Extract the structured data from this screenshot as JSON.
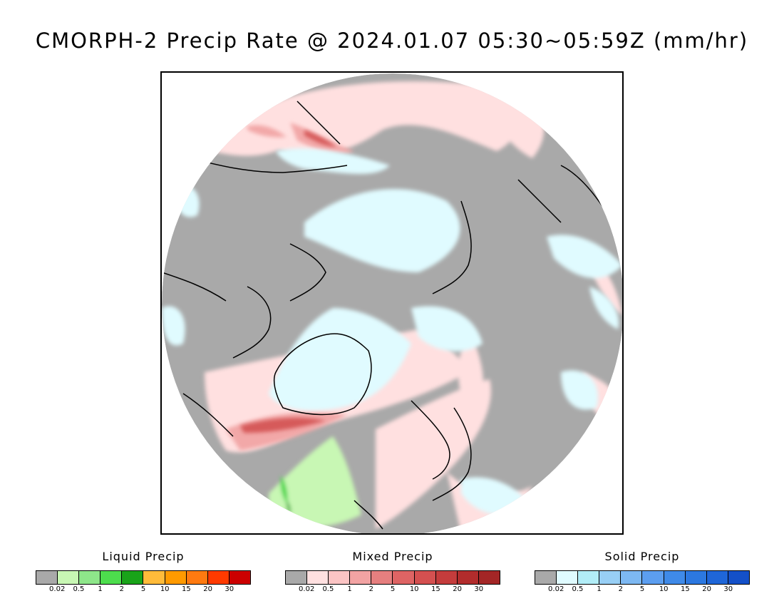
{
  "title": "CMORPH-2 Precip Rate @ 2024.01.07 05:30~05:59Z (mm/hr)",
  "map": {
    "projection": "north-polar-stereographic",
    "colors": {
      "no_precip": "#a9a9a9",
      "light_solid": "#e0fbff",
      "light_mixed": "#ffe0e0",
      "mid_mixed": "#f2a8a8",
      "strong_mixed": "#d65a5a",
      "light_liquid": "#c8f7b4",
      "mid_liquid": "#47d647",
      "strong_liquid": "#1aa31a",
      "coastline": "#000000"
    }
  },
  "legends": [
    {
      "title": "Liquid Precip",
      "colors": [
        "#a9a9a9",
        "#c8f7b4",
        "#8ee68a",
        "#4ddd4d",
        "#19a319",
        "#ffbb3a",
        "#ff9a00",
        "#ff7a10",
        "#ff3a00",
        "#cc0000"
      ],
      "ticks": [
        "0.02",
        "0.5",
        "1",
        "2",
        "5",
        "10",
        "15",
        "20",
        "30"
      ]
    },
    {
      "title": "Mixed Precip",
      "colors": [
        "#a9a9a9",
        "#ffe0e0",
        "#fbc4c4",
        "#f2a3a3",
        "#e67f7f",
        "#de6464",
        "#d45050",
        "#c43c3c",
        "#b22c2c",
        "#a32626"
      ],
      "ticks": [
        "0.02",
        "0.5",
        "1",
        "2",
        "5",
        "10",
        "15",
        "20",
        "30"
      ]
    },
    {
      "title": "Solid Precip",
      "colors": [
        "#a9a9a9",
        "#e0fbff",
        "#b2edf7",
        "#98cff5",
        "#7db8f2",
        "#5c9ef0",
        "#3f8ae8",
        "#2c78e0",
        "#1f66d8",
        "#1450c8"
      ],
      "ticks": [
        "0.02",
        "0.5",
        "1",
        "2",
        "5",
        "10",
        "15",
        "20",
        "30"
      ]
    }
  ]
}
